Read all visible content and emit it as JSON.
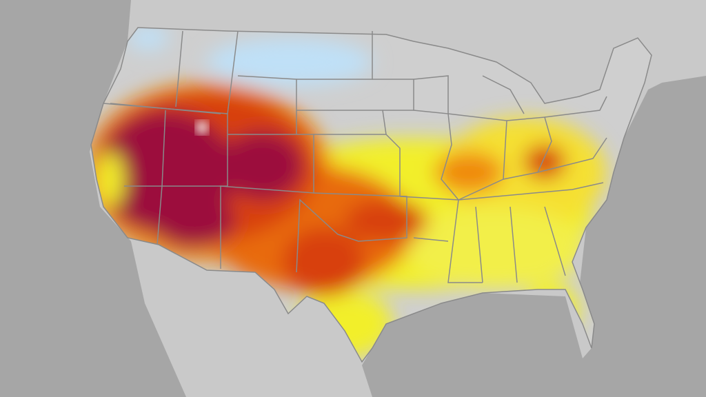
{
  "map": {
    "colors": {
      "ocean": "#a6a6a6",
      "land": "#c9c9c9",
      "border": "#8a8a8a",
      "cool": "#bfe0f7",
      "yellow": "#f2ef2a",
      "orange": "#f08a10",
      "red_orange": "#d8400c",
      "deep_red": "#9c0a3c"
    }
  }
}
